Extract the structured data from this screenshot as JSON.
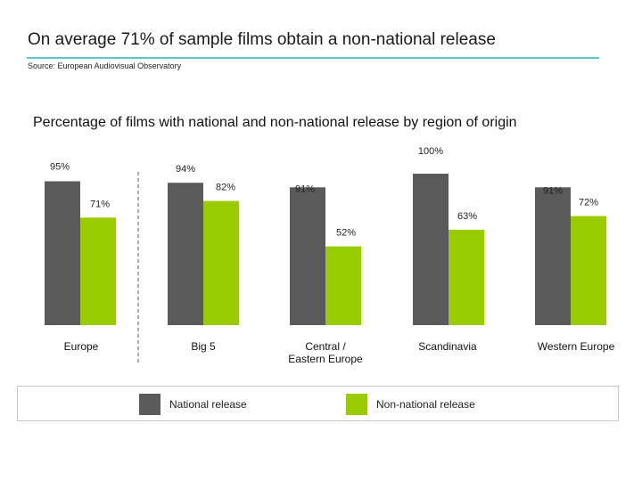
{
  "header": {
    "title": "On average 71% of sample films obtain a non-national release",
    "source": "Source: European Audiovisual Observatory"
  },
  "chart_data": {
    "type": "bar",
    "title": "Percentage of films with national and non-national release by region of origin",
    "categories": [
      [
        "Europe"
      ],
      [
        "Big 5"
      ],
      [
        "Central /",
        "Eastern Europe"
      ],
      [
        "Scandinavia"
      ],
      [
        "Western Europe"
      ]
    ],
    "series": [
      {
        "name": "National release",
        "values": [
          95,
          94,
          91,
          100,
          91
        ],
        "labels": [
          "95%",
          "94%",
          "91%",
          "100%",
          "91%"
        ],
        "color": "#5a5a5a"
      },
      {
        "name": "Non-national release",
        "values": [
          71,
          82,
          52,
          63,
          72
        ],
        "labels": [
          "71%",
          "82%",
          "52%",
          "63%",
          "72%"
        ],
        "color": "#99cc00"
      }
    ],
    "ylim": [
      0,
      100
    ],
    "grid": false,
    "legend_position": "bottom"
  }
}
